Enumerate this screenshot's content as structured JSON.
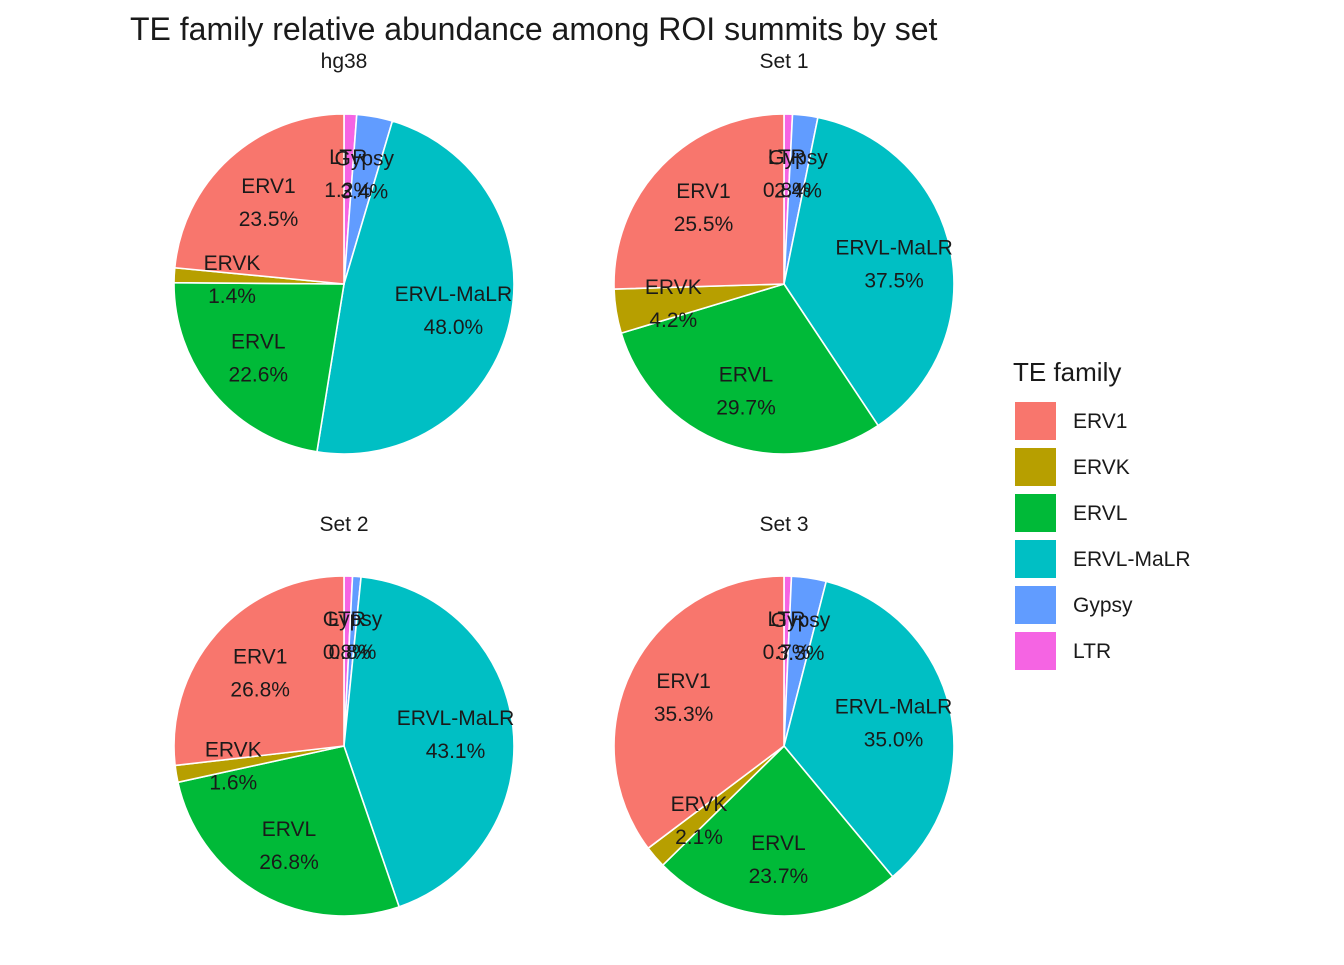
{
  "chart_data": {
    "type": "pie",
    "title": "TE family relative abundance among ROI summits by set",
    "legend": {
      "title": "TE family",
      "placement": "right",
      "entries": [
        {
          "name": "ERV1",
          "color": "#F8766D"
        },
        {
          "name": "ERVK",
          "color": "#B79F00"
        },
        {
          "name": "ERVL",
          "color": "#00BA38"
        },
        {
          "name": "ERVL-MaLR",
          "color": "#00BFC4"
        },
        {
          "name": "Gypsy",
          "color": "#619CFF"
        },
        {
          "name": "LTR",
          "color": "#F564E3"
        }
      ]
    },
    "panels": [
      {
        "name": "hg38",
        "slices": [
          {
            "family": "LTR",
            "value": 1.2,
            "label": "LTR",
            "pct": "1.2%"
          },
          {
            "family": "Gypsy",
            "value": 3.4,
            "label": "Gypsy",
            "pct": "3.4%"
          },
          {
            "family": "ERVL-MaLR",
            "value": 48.0,
            "label": "ERVL-MaLR",
            "pct": "48.0%"
          },
          {
            "family": "ERVL",
            "value": 22.6,
            "label": "ERVL",
            "pct": "22.6%"
          },
          {
            "family": "ERVK",
            "value": 1.4,
            "label": "ERVK",
            "pct": "1.4%"
          },
          {
            "family": "ERV1",
            "value": 23.5,
            "label": "ERV1",
            "pct": "23.5%"
          }
        ]
      },
      {
        "name": "Set  1",
        "slices": [
          {
            "family": "LTR",
            "value": 0.8,
            "label": "LTR",
            "pct": "0.8%"
          },
          {
            "family": "Gypsy",
            "value": 2.4,
            "label": "Gypsy",
            "pct": "2.4%"
          },
          {
            "family": "ERVL-MaLR",
            "value": 37.5,
            "label": "ERVL-MaLR",
            "pct": "37.5%"
          },
          {
            "family": "ERVL",
            "value": 29.7,
            "label": "ERVL",
            "pct": "29.7%"
          },
          {
            "family": "ERVK",
            "value": 4.2,
            "label": "ERVK",
            "pct": "4.2%"
          },
          {
            "family": "ERV1",
            "value": 25.5,
            "label": "ERV1",
            "pct": "25.5%"
          }
        ]
      },
      {
        "name": "Set  2",
        "slices": [
          {
            "family": "LTR",
            "value": 0.8,
            "label": "LTR",
            "pct": "0.8%"
          },
          {
            "family": "Gypsy",
            "value": 0.8,
            "label": "Gypsy",
            "pct": "0.8%"
          },
          {
            "family": "ERVL-MaLR",
            "value": 43.1,
            "label": "ERVL-MaLR",
            "pct": "43.1%"
          },
          {
            "family": "ERVL",
            "value": 26.8,
            "label": "ERVL",
            "pct": "26.8%"
          },
          {
            "family": "ERVK",
            "value": 1.6,
            "label": "ERVK",
            "pct": "1.6%"
          },
          {
            "family": "ERV1",
            "value": 26.8,
            "label": "ERV1",
            "pct": "26.8%"
          }
        ]
      },
      {
        "name": "Set  3",
        "slices": [
          {
            "family": "LTR",
            "value": 0.7,
            "label": "LTR",
            "pct": "0.7%"
          },
          {
            "family": "Gypsy",
            "value": 3.3,
            "label": "Gypsy",
            "pct": "3.3%"
          },
          {
            "family": "ERVL-MaLR",
            "value": 35.0,
            "label": "ERVL-MaLR",
            "pct": "35.0%"
          },
          {
            "family": "ERVL",
            "value": 23.7,
            "label": "ERVL",
            "pct": "23.7%"
          },
          {
            "family": "ERVK",
            "value": 2.1,
            "label": "ERVK",
            "pct": "2.1%"
          },
          {
            "family": "ERV1",
            "value": 35.3,
            "label": "ERV1",
            "pct": "35.3%"
          }
        ]
      }
    ]
  }
}
